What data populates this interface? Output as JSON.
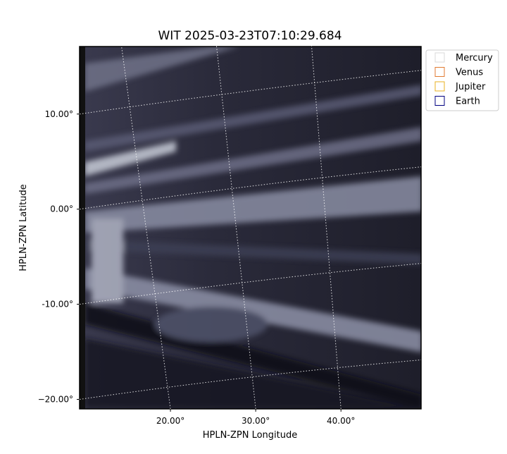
{
  "chart_data": {
    "type": "image",
    "title": "WIT 2025-03-23T07:10:29.684",
    "x_label": "HPLN-ZPN Longitude",
    "y_label": "HPLN-ZPN Latitude",
    "xlim": [
      9.34,
      49.4
    ],
    "ylim": [
      17.1,
      -21.0
    ],
    "xticks": [
      {
        "value": 20,
        "label": "20.00°"
      },
      {
        "value": 30,
        "label": "30.00°"
      },
      {
        "value": 40,
        "label": "40.00°"
      }
    ],
    "yticks": [
      {
        "value": 10,
        "label": "10.00°"
      },
      {
        "value": 0,
        "label": "0.00°"
      },
      {
        "value": -10,
        "label": "-10.00°"
      },
      {
        "value": -20,
        "label": "−20.00°"
      }
    ],
    "grid": true,
    "legend_position": "upper right",
    "legend": [
      {
        "name": "Mercury",
        "color": "#d8d8d8"
      },
      {
        "name": "Venus",
        "color": "#e07a30"
      },
      {
        "name": "Jupiter",
        "color": "#e8b020"
      },
      {
        "name": "Earth",
        "color": "#000080"
      }
    ]
  }
}
